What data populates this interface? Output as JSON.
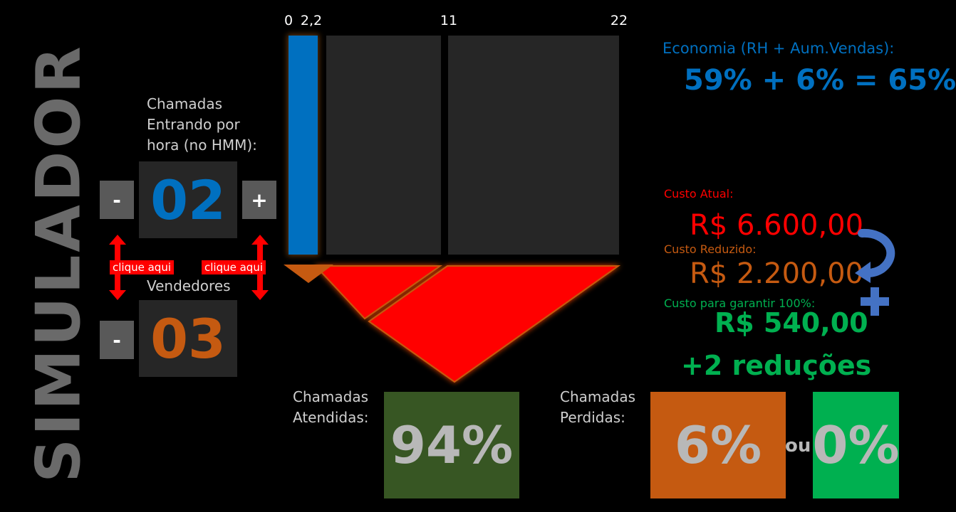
{
  "side_title": "SIMULADOR",
  "calls_input": {
    "label_line1": "Chamadas",
    "label_line2": "Entrando por",
    "label_line3": "hora (no HMM):",
    "value": "02",
    "minus": "-",
    "plus": "+",
    "hint": "clique aqui"
  },
  "sellers_input": {
    "label": "Vendedores",
    "value": "03",
    "minus": "-",
    "hint": "clique aqui"
  },
  "scale": {
    "ticks": [
      "0",
      "2,2",
      "11",
      "22"
    ],
    "max": 22,
    "current_value": 2.2
  },
  "economy": {
    "label": "Economia (RH + Aum.Vendas):",
    "value": "59% + 6% = 65%"
  },
  "costs": {
    "current_label": "Custo Atual:",
    "current_value": "R$ 6.600,00",
    "reduced_label": "Custo Reduzido:",
    "reduced_value": "R$ 2.200,00",
    "guarantee_label": "Custo para garantir 100%:",
    "guarantee_value": "R$ 540,00",
    "reductions": "+2 reduções"
  },
  "answered": {
    "label_line1": "Chamadas",
    "label_line2": "Atendidas:",
    "value": "94%",
    "fraction": 0.94
  },
  "lost": {
    "label_line1": "Chamadas",
    "label_line2": "Perdidas:",
    "value": "6%",
    "or": "ou",
    "alt_value": "0%"
  },
  "colors": {
    "blue": "#0070c0",
    "orange": "#c55a11",
    "red": "#ff0000",
    "green_text": "#00b050",
    "dark_green": "#375623",
    "bright_green": "#00b050",
    "bar_gray": "#262626"
  }
}
